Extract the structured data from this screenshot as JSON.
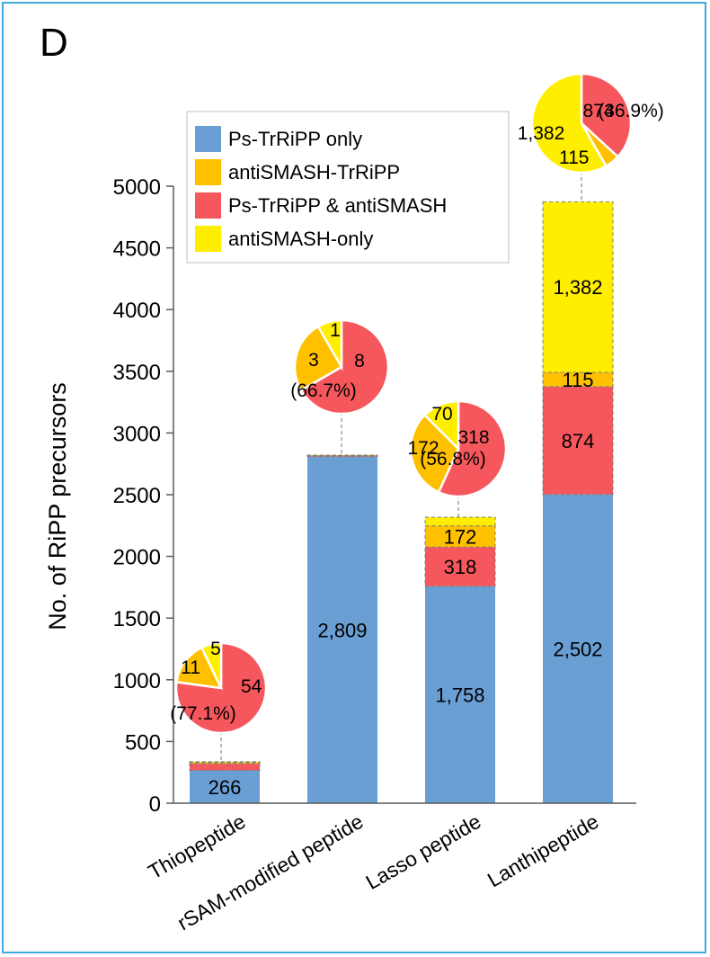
{
  "panel_label": "D",
  "colors": {
    "ps_trripp_only": "#6a9fd4",
    "antismash_trripp": "#ffc000",
    "ps_trripp_and_antismash": "#f6575c",
    "antismash_only": "#ffee00",
    "frame": "#3fa9e0"
  },
  "chart_data": {
    "type": "bar",
    "stacked": true,
    "ylabel": "No. of RiPP precursors",
    "xlabel": "",
    "ylim": [
      0,
      5000
    ],
    "yticks": [
      0,
      500,
      1000,
      1500,
      2000,
      2500,
      3000,
      3500,
      4000,
      4500,
      5000
    ],
    "ytick_labels": [
      "0",
      "500",
      "1000",
      "1500",
      "2000",
      "2500",
      "3000",
      "3500",
      "4000",
      "4500",
      "5000"
    ],
    "grid": false,
    "legend_position": "top-left",
    "categories": [
      "Thiopeptide",
      "rSAM-modified peptide",
      "Lasso peptide",
      "Lanthipeptide"
    ],
    "series": [
      {
        "name": "Ps-TrRiPP only",
        "values": [
          266,
          2809,
          1758,
          2502
        ],
        "labels": [
          "266",
          "2,809",
          "1,758",
          "2,502"
        ]
      },
      {
        "name": "antiSMASH-TrRiPP",
        "values": [
          11,
          3,
          172,
          115
        ],
        "labels": [
          "",
          "",
          "172",
          "115"
        ]
      },
      {
        "name": "Ps-TrRiPP & antiSMASH",
        "values": [
          54,
          8,
          318,
          874
        ],
        "labels": [
          "",
          "",
          "318",
          "874"
        ]
      },
      {
        "name": "antiSMASH-only",
        "values": [
          5,
          1,
          70,
          1382
        ],
        "labels": [
          "",
          "",
          "",
          "1,382"
        ]
      }
    ],
    "pies": [
      {
        "category": "Thiopeptide",
        "slices": [
          {
            "series": "Ps-TrRiPP & antiSMASH",
            "value": 54,
            "label": "54",
            "pct": "(77.1%)"
          },
          {
            "series": "antiSMASH-TrRiPP",
            "value": 11,
            "label": "11",
            "pct": ""
          },
          {
            "series": "antiSMASH-only",
            "value": 5,
            "label": "5",
            "pct": ""
          }
        ]
      },
      {
        "category": "rSAM-modified peptide",
        "slices": [
          {
            "series": "Ps-TrRiPP & antiSMASH",
            "value": 8,
            "label": "8",
            "pct": "(66.7%)"
          },
          {
            "series": "antiSMASH-TrRiPP",
            "value": 3,
            "label": "3",
            "pct": ""
          },
          {
            "series": "antiSMASH-only",
            "value": 1,
            "label": "1",
            "pct": ""
          }
        ]
      },
      {
        "category": "Lasso peptide",
        "slices": [
          {
            "series": "Ps-TrRiPP & antiSMASH",
            "value": 318,
            "label": "318",
            "pct": "(56.8%)"
          },
          {
            "series": "antiSMASH-TrRiPP",
            "value": 172,
            "label": "172",
            "pct": ""
          },
          {
            "series": "antiSMASH-only",
            "value": 70,
            "label": "70",
            "pct": ""
          }
        ]
      },
      {
        "category": "Lanthipeptide",
        "slices": [
          {
            "series": "Ps-TrRiPP & antiSMASH",
            "value": 874,
            "label": "874",
            "pct": "(36.9%)"
          },
          {
            "series": "antiSMASH-TrRiPP",
            "value": 115,
            "label": "115",
            "pct": ""
          },
          {
            "series": "antiSMASH-only",
            "value": 1382,
            "label": "1,382",
            "pct": ""
          }
        ]
      }
    ]
  }
}
